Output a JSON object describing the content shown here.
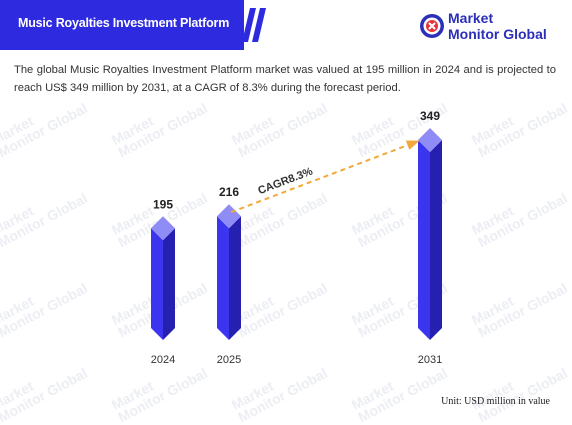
{
  "header": {
    "title": "Music Royalties Investment Platform"
  },
  "logo": {
    "line1": "Market",
    "line2": "Monitor Global"
  },
  "description": "The global Music Royalties Investment Platform market was valued at 195 million in 2024 and is projected to reach US$ 349 million by 2031, at a CAGR of 8.3% during the forecast period.",
  "watermark": {
    "line1": "Market",
    "line2": "Monitor Global"
  },
  "unit_note": "Unit: USD million in value",
  "colors": {
    "brand": "#2d2ae0",
    "bar_front": "#3b35f0",
    "bar_side": "#2520b0",
    "bar_top": "#8f8cf6",
    "cagr_arrow": "#f2a93b"
  },
  "chart_data": {
    "type": "bar",
    "categories": [
      "2024",
      "2025",
      "2031"
    ],
    "values": [
      195,
      216,
      349
    ],
    "data_labels": [
      "195",
      "216",
      "349"
    ],
    "annotation": "CAGR8.3%",
    "ylim": [
      0,
      349
    ]
  }
}
